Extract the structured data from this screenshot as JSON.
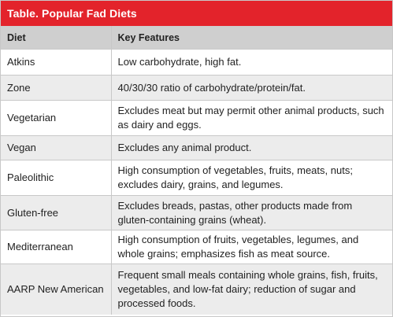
{
  "table": {
    "title": "Table. Popular Fad Diets",
    "headers": [
      "Diet",
      "Key Features"
    ],
    "rows": [
      {
        "diet": "Atkins",
        "features": "Low carbohydrate, high fat."
      },
      {
        "diet": "Zone",
        "features": "40/30/30 ratio of carbohydrate/protein/fat."
      },
      {
        "diet": "Vegetarian",
        "features": "Excludes meat but may permit other animal products, such as dairy and eggs."
      },
      {
        "diet": "Vegan",
        "features": "Excludes any animal product."
      },
      {
        "diet": "Paleolithic",
        "features": "High consumption of vegetables, fruits, meats, nuts; excludes dairy, grains, and legumes."
      },
      {
        "diet": "Gluten-free",
        "features": "Excludes breads, pastas, other products made from gluten-containing grains (wheat)."
      },
      {
        "diet": "Mediterranean",
        "features": "High consumption of fruits, vegetables, legumes, and whole grains; emphasizes fish as meat source."
      },
      {
        "diet": "AARP New American",
        "features": "Frequent small meals containing whole grains, fish, fruits, vegetables, and low-fat dairy; reduction of sugar and processed foods."
      }
    ]
  },
  "colors": {
    "title_bar": "#e3232b",
    "header_row": "#cfcfcf",
    "stripe": "#ececec"
  }
}
